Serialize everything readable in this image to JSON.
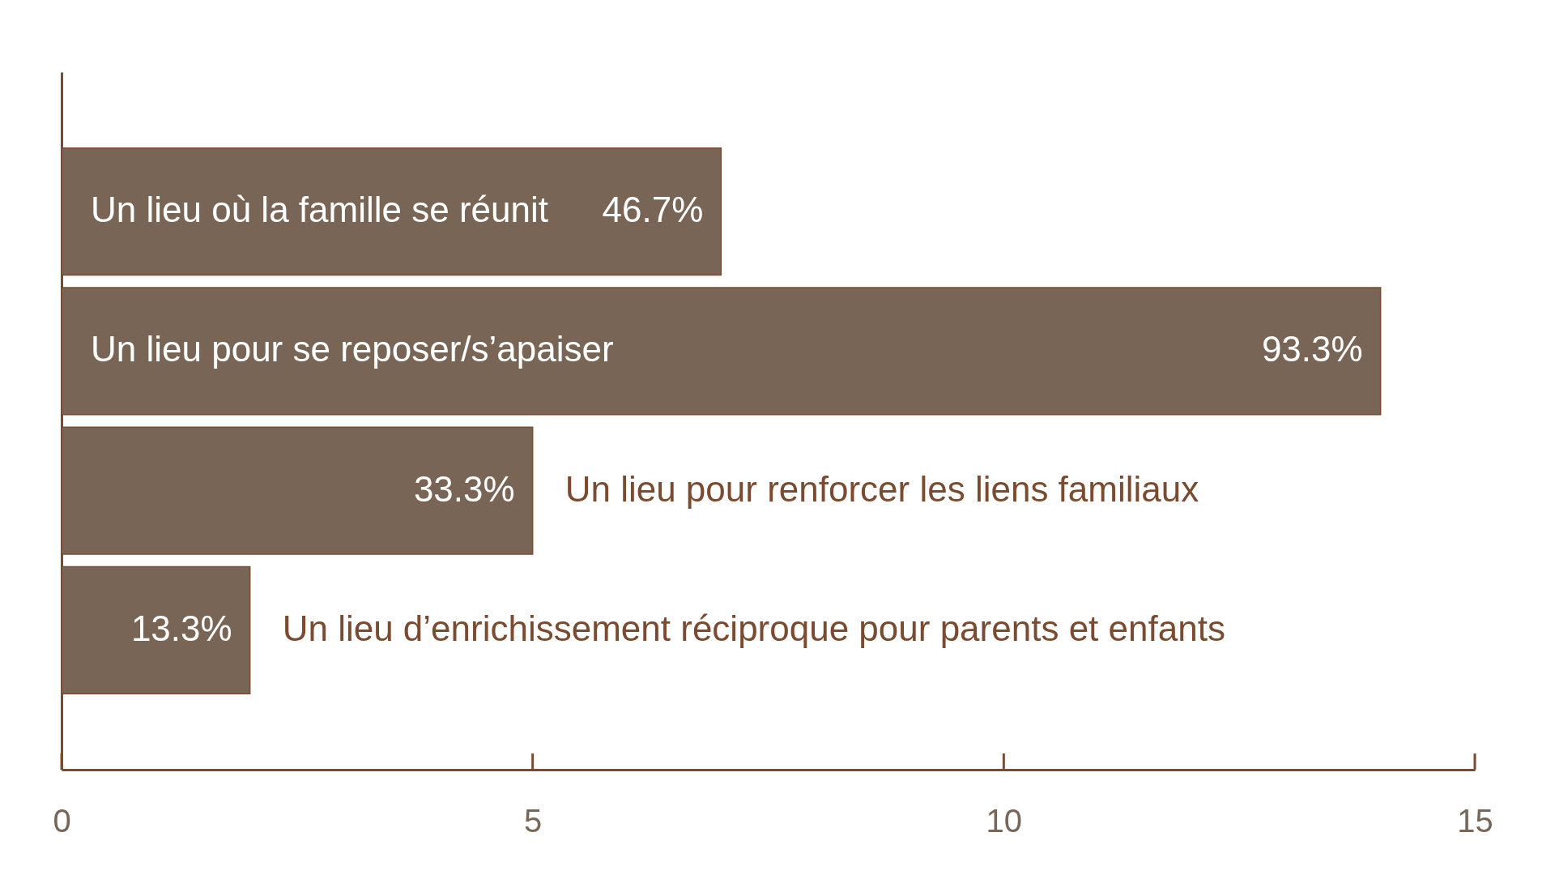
{
  "chart_data": {
    "type": "bar",
    "orientation": "horizontal",
    "categories": [
      "Un lieu où la famille se réunit",
      "Un lieu pour se reposer/s’apaiser",
      "Un lieu pour renforcer les liens familiaux",
      "Un lieu d’enrichissement réciproque pour parents et enfants"
    ],
    "values": [
      7,
      14,
      5,
      2
    ],
    "color": "#796555",
    "xlim": [
      0,
      15
    ],
    "xticks": [
      0,
      5,
      10,
      15
    ],
    "annotations": [
      {
        "text": "46.7%",
        "x": 7,
        "y": "Un lieu où la famille se réunit"
      },
      {
        "text": "93.3%",
        "x": 14,
        "y": "Un lieu pour se reposer/s’apaiser"
      },
      {
        "text": "33.3%",
        "x": 5,
        "y": "Un lieu pour renforcer les liens familiaux"
      },
      {
        "text": "13.3%",
        "x": 2,
        "y": "Un lieu d’enrichissement réciproque pour parents et enfants"
      }
    ]
  }
}
